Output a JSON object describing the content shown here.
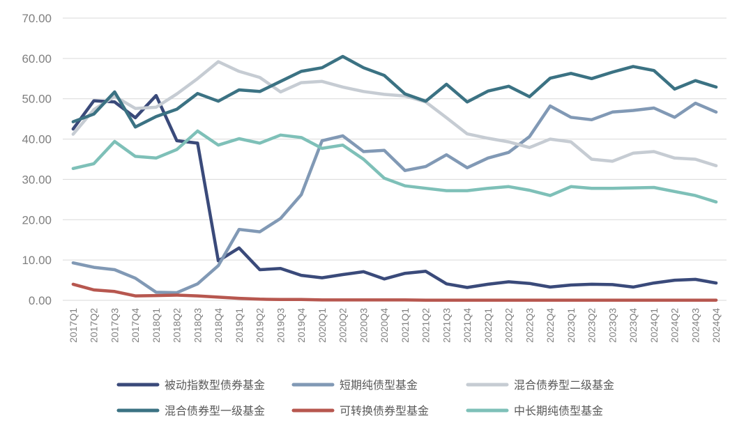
{
  "chart_data": {
    "type": "line",
    "title": "",
    "xlabel": "",
    "ylabel": "",
    "ylim": [
      0,
      70
    ],
    "yticks": [
      "0.00",
      "10.00",
      "20.00",
      "30.00",
      "40.00",
      "50.00",
      "60.00",
      "70.00"
    ],
    "grid": "horizontal",
    "legend_position": "bottom",
    "categories": [
      "2017Q1",
      "2017Q2",
      "2017Q3",
      "2017Q4",
      "2018Q1",
      "2018Q2",
      "2018Q3",
      "2018Q4",
      "2019Q1",
      "2019Q2",
      "2019Q3",
      "2019Q4",
      "2020Q1",
      "2020Q2",
      "2020Q3",
      "2020Q4",
      "2021Q1",
      "2021Q2",
      "2021Q3",
      "2021Q4",
      "2022Q1",
      "2022Q2",
      "2022Q3",
      "2022Q4",
      "2023Q1",
      "2023Q2",
      "2023Q3",
      "2023Q4",
      "2024Q1",
      "2024Q2",
      "2024Q3",
      "2024Q4"
    ],
    "series": [
      {
        "name": "被动指数型债券基金",
        "color": "#3a4a7a",
        "values": [
          42.5,
          49.5,
          49.2,
          45.3,
          50.8,
          39.6,
          39.0,
          9.8,
          13.0,
          7.6,
          7.9,
          6.2,
          5.6,
          6.4,
          7.1,
          5.3,
          6.7,
          7.2,
          4.1,
          3.2,
          4.0,
          4.6,
          4.2,
          3.3,
          3.8,
          4.0,
          3.9,
          3.3,
          4.3,
          5.0,
          5.2,
          4.3
        ]
      },
      {
        "name": "短期纯债型基金",
        "color": "#8199b5",
        "values": [
          9.3,
          8.2,
          7.6,
          5.5,
          2.0,
          1.9,
          4.1,
          8.6,
          17.6,
          17.0,
          20.3,
          26.2,
          39.6,
          40.8,
          36.9,
          37.2,
          32.2,
          33.2,
          36.1,
          32.9,
          35.3,
          36.7,
          40.6,
          48.2,
          45.4,
          44.8,
          46.7,
          47.1,
          47.7,
          45.4,
          48.9,
          46.7
        ]
      },
      {
        "name": "混合债券型二级基金",
        "color": "#c6ccd3",
        "values": [
          41.2,
          47.3,
          50.6,
          47.6,
          47.9,
          51.2,
          55.0,
          59.2,
          56.8,
          55.3,
          51.7,
          54.0,
          54.3,
          52.9,
          51.8,
          51.1,
          50.7,
          49.2,
          45.3,
          41.3,
          40.2,
          39.3,
          37.9,
          40.0,
          39.3,
          35.0,
          34.5,
          36.5,
          36.9,
          35.3,
          35.0,
          33.4
        ]
      },
      {
        "name": "混合债券型一级基金",
        "color": "#3b7283",
        "values": [
          44.3,
          46.2,
          51.7,
          43.0,
          45.6,
          47.4,
          51.3,
          49.4,
          52.2,
          51.8,
          54.3,
          56.8,
          57.7,
          60.5,
          57.7,
          55.8,
          51.2,
          49.4,
          53.6,
          49.2,
          51.9,
          53.1,
          50.5,
          55.1,
          56.3,
          55.0,
          56.6,
          58.0,
          57.0,
          52.4,
          54.5,
          52.9
        ]
      },
      {
        "name": "可转换债券型基金",
        "color": "#b7574f",
        "values": [
          4.0,
          2.6,
          2.2,
          1.1,
          1.2,
          1.3,
          1.1,
          0.8,
          0.5,
          0.3,
          0.2,
          0.2,
          0.1,
          0.1,
          0.1,
          0.1,
          0.1,
          0.05,
          0.05,
          0.05,
          0.05,
          0.05,
          0.05,
          0.05,
          0.05,
          0.05,
          0.05,
          0.05,
          0.05,
          0.05,
          0.05,
          0.05
        ]
      },
      {
        "name": "中长期纯债型基金",
        "color": "#7ec0b8",
        "values": [
          32.7,
          33.9,
          39.4,
          35.7,
          35.3,
          37.4,
          42.0,
          38.5,
          40.1,
          39.0,
          41.0,
          40.4,
          37.7,
          38.5,
          35.0,
          30.3,
          28.4,
          27.8,
          27.2,
          27.2,
          27.8,
          28.2,
          27.3,
          26.0,
          28.2,
          27.8,
          27.8,
          27.9,
          28.0,
          27.0,
          26.0,
          24.4
        ]
      }
    ]
  }
}
